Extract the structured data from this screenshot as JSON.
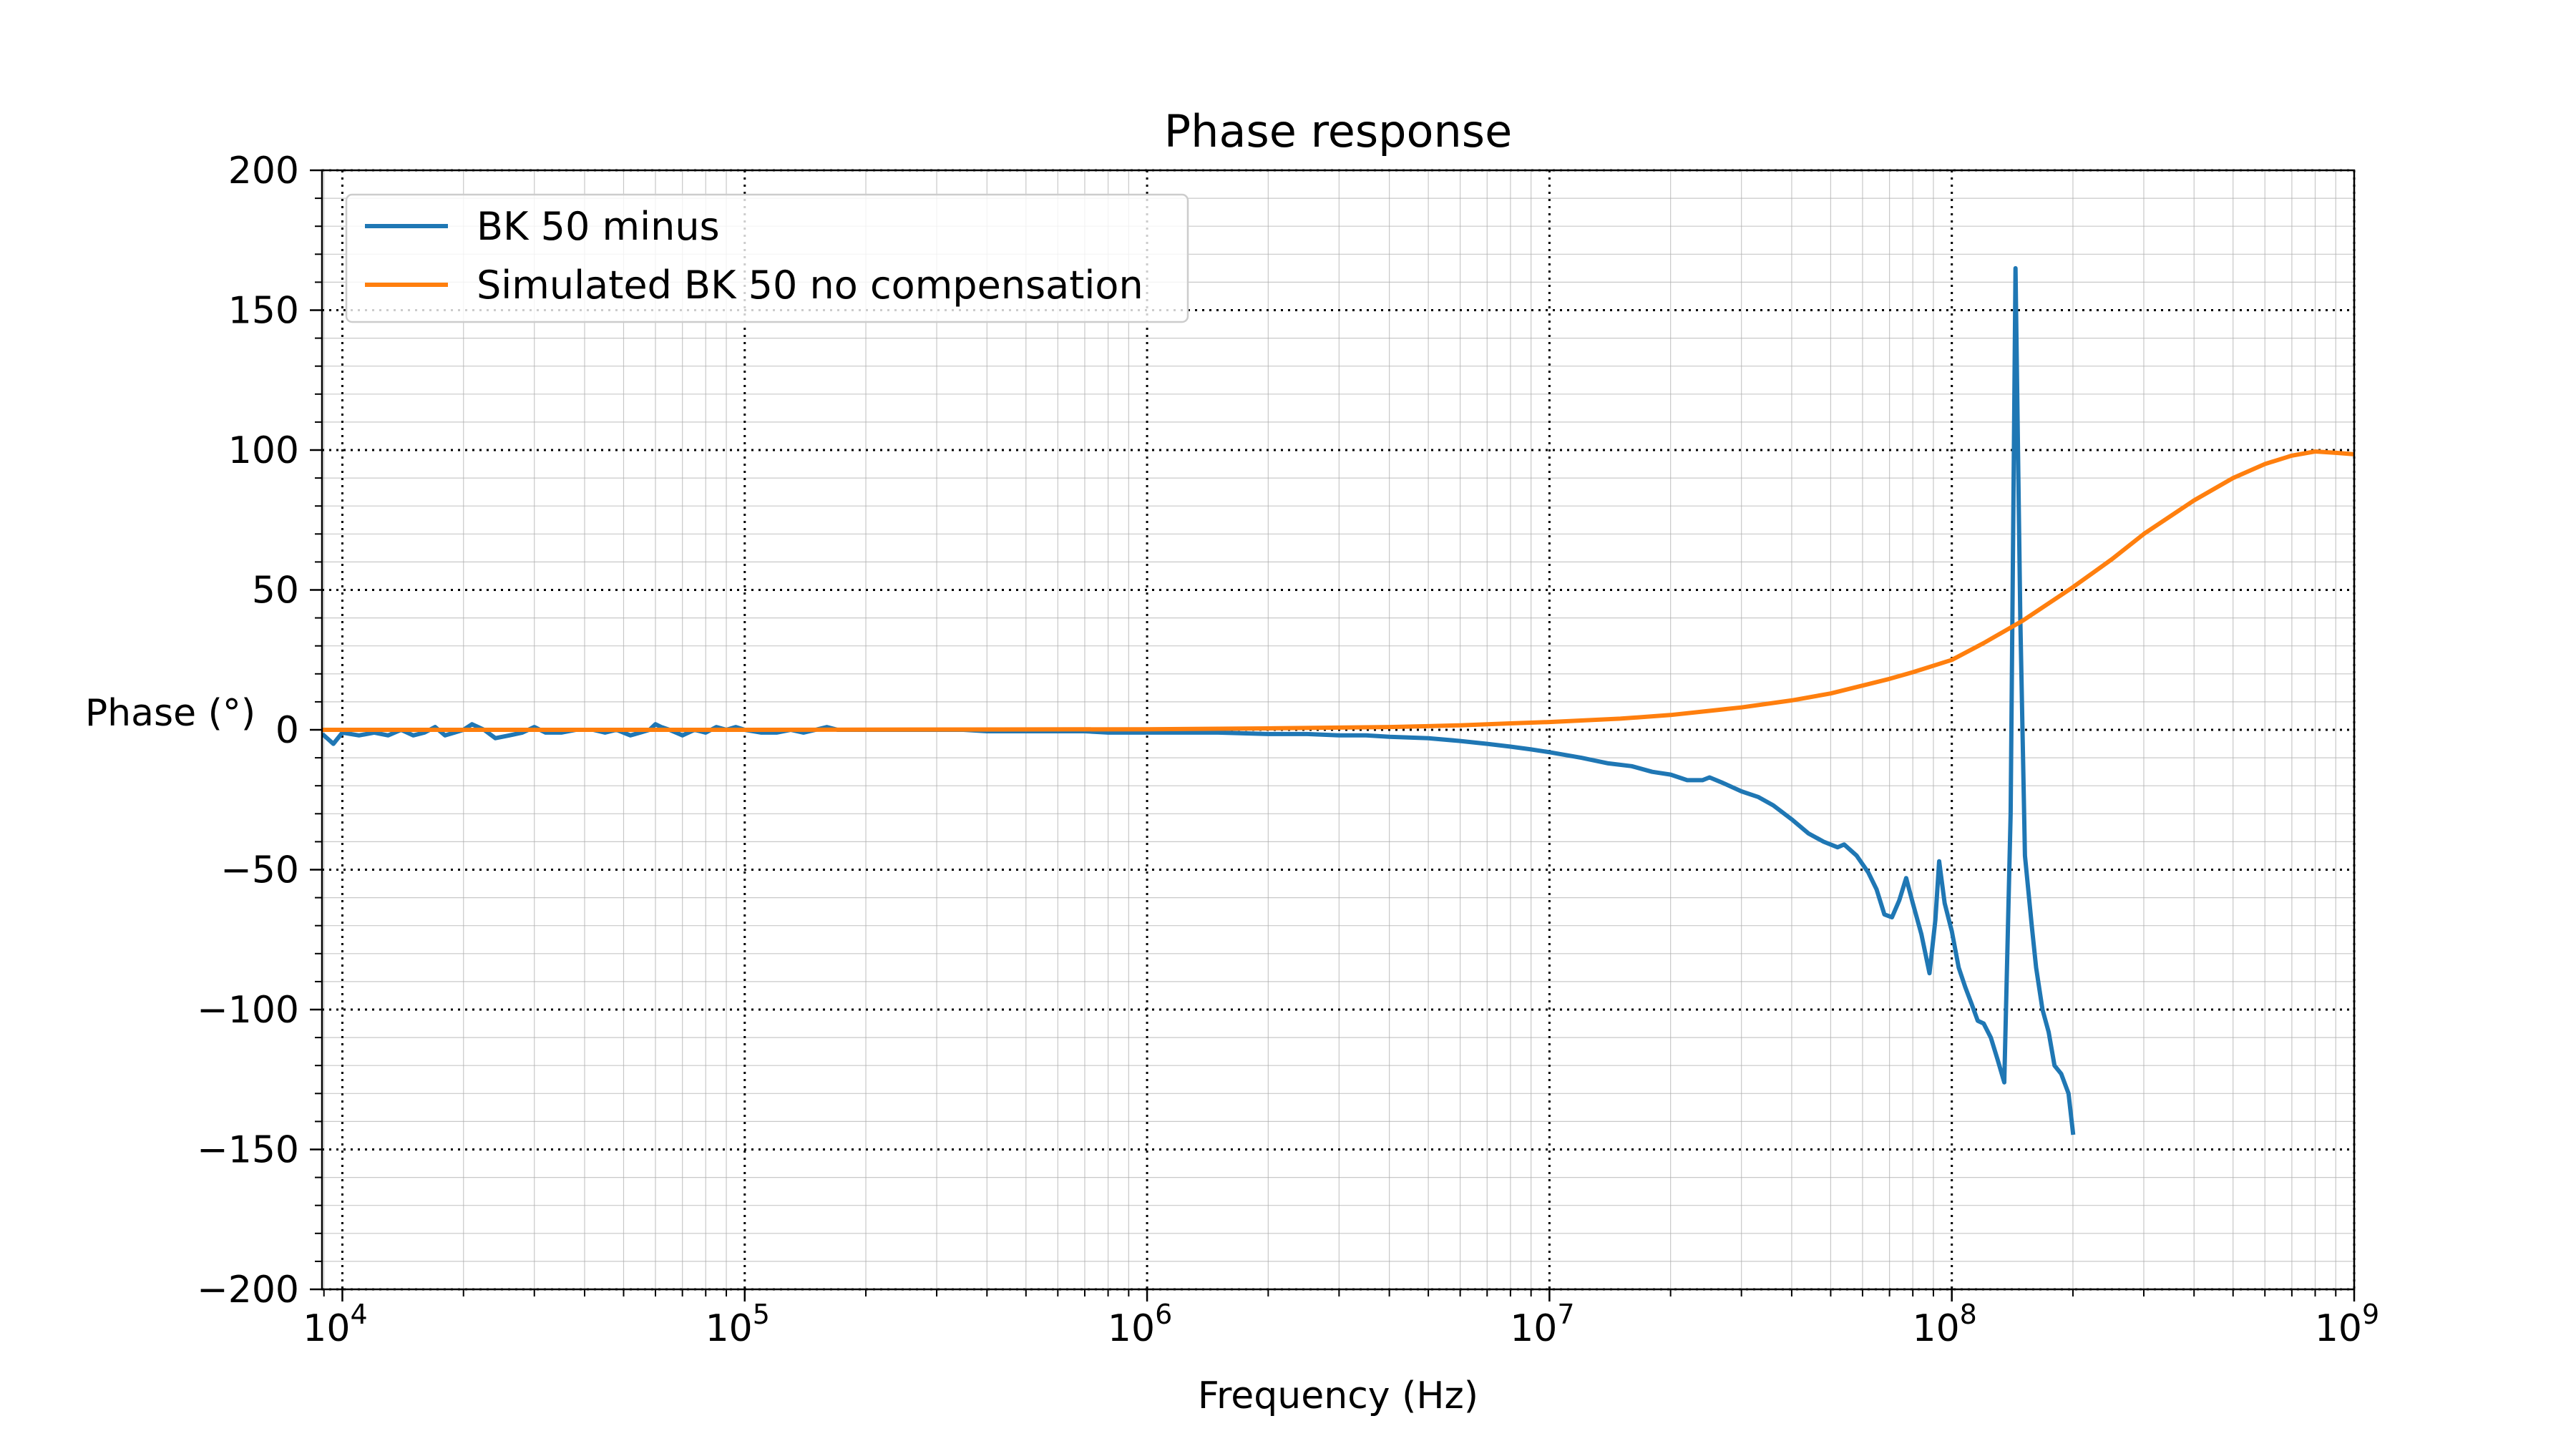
{
  "chart_data": {
    "type": "line",
    "title": "Phase response",
    "xlabel": "Frequency (Hz)",
    "ylabel": "Phase (°)",
    "xscale": "log",
    "xlim": [
      8900,
      1000000000
    ],
    "ylim": [
      -200,
      200
    ],
    "x_ticks": [
      {
        "value": 10000,
        "base": "10",
        "exp": "4"
      },
      {
        "value": 100000,
        "base": "10",
        "exp": "5"
      },
      {
        "value": 1000000,
        "base": "10",
        "exp": "6"
      },
      {
        "value": 10000000,
        "base": "10",
        "exp": "7"
      },
      {
        "value": 100000000,
        "base": "10",
        "exp": "8"
      },
      {
        "value": 1000000000,
        "base": "10",
        "exp": "9"
      }
    ],
    "y_ticks": [
      {
        "value": 200,
        "label": "200"
      },
      {
        "value": 150,
        "label": "150"
      },
      {
        "value": 100,
        "label": "100"
      },
      {
        "value": 50,
        "label": "50"
      },
      {
        "value": 0,
        "label": "0"
      },
      {
        "value": -50,
        "label": "−50"
      },
      {
        "value": -100,
        "label": "−100"
      },
      {
        "value": -150,
        "label": "−150"
      },
      {
        "value": -200,
        "label": "−200"
      }
    ],
    "grid": {
      "major": "dotted",
      "minor": "solid-light"
    },
    "legend_position": "top-left",
    "series": [
      {
        "name": "BK 50 minus",
        "color": "#1f77b4",
        "points": [
          [
            9000,
            -2
          ],
          [
            9500,
            -5
          ],
          [
            10000,
            -1
          ],
          [
            11000,
            -2
          ],
          [
            12000,
            -1
          ],
          [
            13000,
            -2
          ],
          [
            14000,
            0
          ],
          [
            15000,
            -2
          ],
          [
            16000,
            -1
          ],
          [
            17000,
            1
          ],
          [
            18000,
            -2
          ],
          [
            19000,
            -1
          ],
          [
            20000,
            0
          ],
          [
            21000,
            2
          ],
          [
            22500,
            0
          ],
          [
            24000,
            -3
          ],
          [
            26000,
            -2
          ],
          [
            28000,
            -1
          ],
          [
            30000,
            1
          ],
          [
            32000,
            -1
          ],
          [
            35000,
            -1
          ],
          [
            38000,
            0
          ],
          [
            42000,
            0
          ],
          [
            45000,
            -1
          ],
          [
            48000,
            0
          ],
          [
            52000,
            -2
          ],
          [
            55000,
            -1
          ],
          [
            58000,
            0
          ],
          [
            60000,
            2
          ],
          [
            62000,
            1
          ],
          [
            65000,
            0
          ],
          [
            70000,
            -2
          ],
          [
            75000,
            0
          ],
          [
            80000,
            -1
          ],
          [
            85000,
            1
          ],
          [
            90000,
            0
          ],
          [
            95000,
            1
          ],
          [
            100000,
            0
          ],
          [
            110000,
            -1
          ],
          [
            120000,
            -1
          ],
          [
            130000,
            0
          ],
          [
            140000,
            -1
          ],
          [
            150000,
            0
          ],
          [
            160000,
            1
          ],
          [
            170000,
            0
          ],
          [
            180000,
            0
          ],
          [
            200000,
            0
          ],
          [
            220000,
            0
          ],
          [
            250000,
            0
          ],
          [
            300000,
            0
          ],
          [
            350000,
            0
          ],
          [
            400000,
            -0.5
          ],
          [
            500000,
            -0.5
          ],
          [
            600000,
            -0.5
          ],
          [
            700000,
            -0.5
          ],
          [
            800000,
            -1
          ],
          [
            1000000,
            -1
          ],
          [
            1200000,
            -1
          ],
          [
            1500000,
            -1
          ],
          [
            2000000,
            -1.5
          ],
          [
            2500000,
            -1.5
          ],
          [
            3000000,
            -2
          ],
          [
            3500000,
            -2
          ],
          [
            4000000,
            -2.5
          ],
          [
            5000000,
            -3
          ],
          [
            6000000,
            -4
          ],
          [
            7000000,
            -5
          ],
          [
            8000000,
            -6
          ],
          [
            9000000,
            -7
          ],
          [
            10000000,
            -8
          ],
          [
            12000000,
            -10
          ],
          [
            14000000,
            -12
          ],
          [
            16000000,
            -13
          ],
          [
            18000000,
            -15
          ],
          [
            20000000,
            -16
          ],
          [
            22000000,
            -18
          ],
          [
            24000000,
            -18
          ],
          [
            25000000,
            -17
          ],
          [
            27000000,
            -19
          ],
          [
            30000000,
            -22
          ],
          [
            33000000,
            -24
          ],
          [
            36000000,
            -27
          ],
          [
            40000000,
            -32
          ],
          [
            44000000,
            -37
          ],
          [
            48000000,
            -40
          ],
          [
            52000000,
            -42
          ],
          [
            54000000,
            -41
          ],
          [
            58000000,
            -45
          ],
          [
            62000000,
            -51
          ],
          [
            65000000,
            -57
          ],
          [
            68000000,
            -66
          ],
          [
            71000000,
            -67
          ],
          [
            74000000,
            -61
          ],
          [
            77000000,
            -53
          ],
          [
            80000000,
            -62
          ],
          [
            84000000,
            -73
          ],
          [
            88000000,
            -87
          ],
          [
            91000000,
            -68
          ],
          [
            93000000,
            -47
          ],
          [
            96000000,
            -62
          ],
          [
            100000000,
            -72
          ],
          [
            104000000,
            -85
          ],
          [
            108000000,
            -92
          ],
          [
            112000000,
            -98
          ],
          [
            116000000,
            -104
          ],
          [
            120000000,
            -105
          ],
          [
            125000000,
            -110
          ],
          [
            130000000,
            -118
          ],
          [
            135000000,
            -126
          ],
          [
            140000000,
            -30
          ],
          [
            144000000,
            165
          ],
          [
            148000000,
            40
          ],
          [
            152000000,
            -45
          ],
          [
            158000000,
            -70
          ],
          [
            162000000,
            -85
          ],
          [
            168000000,
            -100
          ],
          [
            174000000,
            -108
          ],
          [
            180000000,
            -120
          ],
          [
            187000000,
            -123
          ],
          [
            195000000,
            -130
          ],
          [
            200000000,
            -144
          ]
        ]
      },
      {
        "name": "Simulated BK 50 no compensation",
        "color": "#ff7f0e",
        "points": [
          [
            8900,
            0
          ],
          [
            100000,
            0
          ],
          [
            1000000,
            0.2
          ],
          [
            2000000,
            0.5
          ],
          [
            3000000,
            0.8
          ],
          [
            4000000,
            1
          ],
          [
            5000000,
            1.3
          ],
          [
            6000000,
            1.6
          ],
          [
            7000000,
            2
          ],
          [
            8000000,
            2.3
          ],
          [
            10000000,
            2.8
          ],
          [
            15000000,
            4
          ],
          [
            20000000,
            5.3
          ],
          [
            30000000,
            8
          ],
          [
            40000000,
            10.5
          ],
          [
            50000000,
            13
          ],
          [
            60000000,
            15.8
          ],
          [
            70000000,
            18.2
          ],
          [
            80000000,
            20.6
          ],
          [
            100000000,
            25
          ],
          [
            120000000,
            31
          ],
          [
            150000000,
            39
          ],
          [
            200000000,
            51
          ],
          [
            250000000,
            61
          ],
          [
            300000000,
            70
          ],
          [
            400000000,
            82
          ],
          [
            500000000,
            90
          ],
          [
            600000000,
            95
          ],
          [
            700000000,
            98
          ],
          [
            800000000,
            99.5
          ],
          [
            900000000,
            99
          ],
          [
            1000000000,
            98.5
          ]
        ]
      }
    ]
  }
}
